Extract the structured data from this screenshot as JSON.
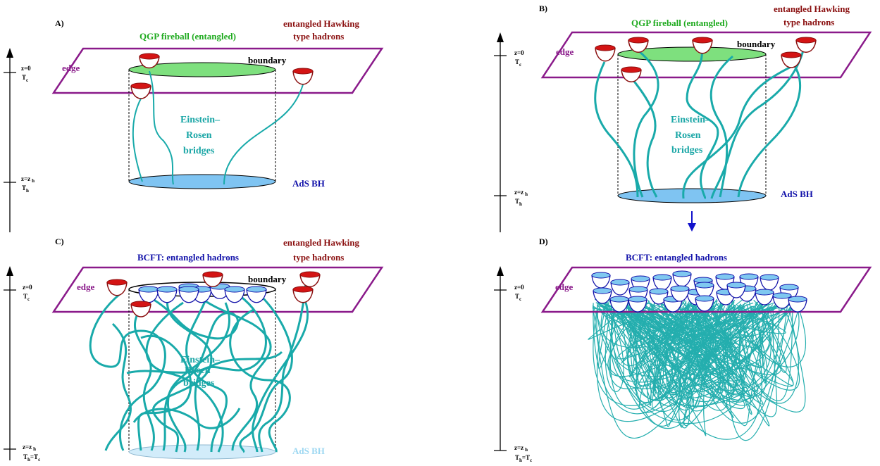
{
  "panels": [
    {
      "id": "A)",
      "top_label": "QGP fireball (entangled)",
      "right_label_1": "entangled Hawking",
      "right_label_2": "type hadrons",
      "edge": "edge",
      "boundary": "boundary",
      "bridge_1": "Einstein–",
      "bridge_2": "Rosen",
      "bridge_3": "bridges",
      "bh": "AdS BH",
      "axis_top": "z=0",
      "axis_top_T": "T",
      "axis_top_T_sub": "c",
      "axis_bot": "z=z",
      "axis_bot_sub": "h",
      "axis_bot_T": "T",
      "axis_bot_T_sub": "h",
      "axis_bot_T_suffix": ""
    },
    {
      "id": "B)",
      "top_label": "QGP fireball (entangled)",
      "right_label_1": "entangled Hawking",
      "right_label_2": "type hadrons",
      "edge": "edge",
      "boundary": "boundary",
      "bridge_1": "Einstein–",
      "bridge_2": "Rosen",
      "bridge_3": "bridges",
      "bh": "AdS BH",
      "axis_top": "z=0",
      "axis_top_T": "T",
      "axis_top_T_sub": "c",
      "axis_bot": "z=z",
      "axis_bot_sub": "h",
      "axis_bot_T": "T",
      "axis_bot_T_sub": "h",
      "axis_bot_T_suffix": ""
    },
    {
      "id": "C)",
      "top_label": "BCFT: entangled hadrons",
      "right_label_1": "entangled Hawking",
      "right_label_2": "type hadrons",
      "edge": "edge",
      "boundary": "boundary",
      "bridge_1": "Einstein–",
      "bridge_2": "Rosen",
      "bridge_3": "bridges",
      "bh": "AdS BH",
      "axis_top": "z=0",
      "axis_top_T": "T",
      "axis_top_T_sub": "c",
      "axis_bot": "z=z",
      "axis_bot_sub": "h",
      "axis_bot_T": "T",
      "axis_bot_T_sub": "h",
      "axis_bot_T_suffix": "=T",
      "axis_bot_T_suffix_sub": "c"
    },
    {
      "id": "D)",
      "top_label": "BCFT: entangled hadrons",
      "edge": "edge",
      "axis_top": "z=0",
      "axis_top_T": "T",
      "axis_top_T_sub": "c",
      "axis_bot": "z=z",
      "axis_bot_sub": "h",
      "axis_bot_T": "T",
      "axis_bot_T_sub": "h",
      "axis_bot_T_suffix": "=T",
      "axis_bot_T_suffix_sub": "c"
    }
  ],
  "colors": {
    "plane": "#8a1a8a",
    "fireball": "#7ee07e",
    "black_hole": "#7fc4f2",
    "black_hole_faded": "#d2ecfa",
    "bridge": "#19aaaa",
    "hadron_red": "#d41414",
    "hadron_cup_red": "#8a0f0f",
    "hadron_blue": "#7fc8f0",
    "hadron_cup_blue": "#1212aa",
    "arrow": "#1212cc"
  }
}
